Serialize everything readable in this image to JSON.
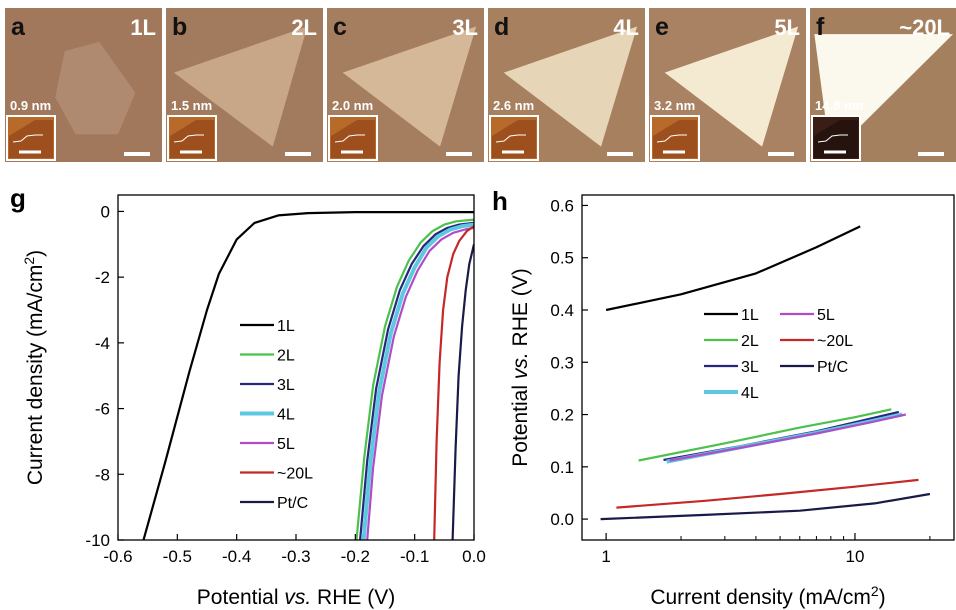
{
  "images": {
    "panels": [
      {
        "letter": "a",
        "layer": "1L",
        "thickness": "0.9 nm",
        "bg": "#a1785c",
        "flake": "#b08a70",
        "shape": "hex"
      },
      {
        "letter": "b",
        "layer": "2L",
        "thickness": "1.5 nm",
        "bg": "#a27a5d",
        "flake": "#c7a787",
        "shape": "tri"
      },
      {
        "letter": "c",
        "layer": "3L",
        "thickness": "2.0 nm",
        "bg": "#a57d5f",
        "flake": "#d4b898",
        "shape": "tri"
      },
      {
        "letter": "d",
        "layer": "4L",
        "thickness": "2.6 nm",
        "bg": "#a7805f",
        "flake": "#e6d6b7",
        "shape": "tri"
      },
      {
        "letter": "e",
        "layer": "5L",
        "thickness": "3.2 nm",
        "bg": "#a88262",
        "flake": "#f4ead2",
        "shape": "tri"
      },
      {
        "letter": "f",
        "layer": "~20L",
        "thickness": "14.8 nm",
        "bg": "#a5805f",
        "flake": "#fbf8ee",
        "shape": "tri"
      }
    ]
  },
  "chart_data": [
    {
      "panel": "g",
      "type": "line",
      "xlabel_parts": [
        "Potential ",
        "vs.",
        " RHE (V)"
      ],
      "ylabel_parts": [
        "Current density (mA/cm",
        "2",
        ")"
      ],
      "xlim": [
        -0.6,
        0.0
      ],
      "ylim": [
        -10,
        0.5
      ],
      "xticks": [
        "-0.6",
        "-0.5",
        "-0.4",
        "-0.3",
        "-0.2",
        "-0.1",
        "0.0"
      ],
      "yticks": [
        "0",
        "-2",
        "-4",
        "-6",
        "-8",
        "-10"
      ],
      "legend_position": "center-left",
      "series": [
        {
          "name": "1L",
          "color": "#000000",
          "points": [
            [
              -0.557,
              -10
            ],
            [
              -0.52,
              -7.6
            ],
            [
              -0.48,
              -4.9
            ],
            [
              -0.45,
              -3.0
            ],
            [
              -0.43,
              -1.9
            ],
            [
              -0.4,
              -0.85
            ],
            [
              -0.37,
              -0.35
            ],
            [
              -0.33,
              -0.12
            ],
            [
              -0.28,
              -0.05
            ],
            [
              -0.2,
              -0.02
            ],
            [
              -0.1,
              -0.02
            ],
            [
              0,
              -0.02
            ]
          ]
        },
        {
          "name": "2L",
          "color": "#4cc24c",
          "points": [
            [
              -0.198,
              -10
            ],
            [
              -0.185,
              -7.5
            ],
            [
              -0.17,
              -5.3
            ],
            [
              -0.15,
              -3.5
            ],
            [
              -0.13,
              -2.3
            ],
            [
              -0.11,
              -1.5
            ],
            [
              -0.09,
              -0.95
            ],
            [
              -0.07,
              -0.6
            ],
            [
              -0.05,
              -0.4
            ],
            [
              -0.03,
              -0.3
            ],
            [
              0,
              -0.25
            ]
          ]
        },
        {
          "name": "3L",
          "color": "#26267a",
          "points": [
            [
              -0.192,
              -10
            ],
            [
              -0.18,
              -7.6
            ],
            [
              -0.165,
              -5.4
            ],
            [
              -0.145,
              -3.6
            ],
            [
              -0.125,
              -2.4
            ],
            [
              -0.105,
              -1.6
            ],
            [
              -0.085,
              -1.05
            ],
            [
              -0.065,
              -0.7
            ],
            [
              -0.045,
              -0.5
            ],
            [
              -0.025,
              -0.4
            ],
            [
              0,
              -0.35
            ]
          ]
        },
        {
          "name": "4L",
          "color": "#5ec8e0",
          "points": [
            [
              -0.186,
              -10
            ],
            [
              -0.175,
              -7.7
            ],
            [
              -0.16,
              -5.5
            ],
            [
              -0.14,
              -3.7
            ],
            [
              -0.12,
              -2.5
            ],
            [
              -0.1,
              -1.7
            ],
            [
              -0.08,
              -1.1
            ],
            [
              -0.06,
              -0.75
            ],
            [
              -0.04,
              -0.55
            ],
            [
              -0.02,
              -0.45
            ],
            [
              0,
              -0.4
            ]
          ]
        },
        {
          "name": "5L",
          "color": "#b04cc8",
          "points": [
            [
              -0.18,
              -10
            ],
            [
              -0.17,
              -7.8
            ],
            [
              -0.155,
              -5.6
            ],
            [
              -0.135,
              -3.8
            ],
            [
              -0.115,
              -2.6
            ],
            [
              -0.095,
              -1.8
            ],
            [
              -0.075,
              -1.2
            ],
            [
              -0.055,
              -0.85
            ],
            [
              -0.035,
              -0.65
            ],
            [
              -0.015,
              -0.55
            ],
            [
              0,
              -0.5
            ]
          ]
        },
        {
          "name": "~20L",
          "color": "#c42828",
          "points": [
            [
              -0.067,
              -10
            ],
            [
              -0.063,
              -7.0
            ],
            [
              -0.058,
              -4.6
            ],
            [
              -0.052,
              -3.0
            ],
            [
              -0.045,
              -2.0
            ],
            [
              -0.035,
              -1.3
            ],
            [
              -0.025,
              -0.9
            ],
            [
              -0.012,
              -0.6
            ],
            [
              0,
              -0.45
            ]
          ]
        },
        {
          "name": "Pt/C",
          "color": "#1a1a4a",
          "points": [
            [
              -0.036,
              -10
            ],
            [
              -0.031,
              -7.2
            ],
            [
              -0.026,
              -5.0
            ],
            [
              -0.02,
              -3.5
            ],
            [
              -0.014,
              -2.4
            ],
            [
              -0.008,
              -1.6
            ],
            [
              0,
              -1.0
            ]
          ]
        }
      ]
    },
    {
      "panel": "h",
      "type": "line",
      "xscale": "log",
      "xlabel_parts": [
        "Current density (mA/cm",
        "2",
        ")"
      ],
      "ylabel_parts": [
        "Potential ",
        "vs.",
        " RHE (V)"
      ],
      "xlim": [
        0.8,
        25
      ],
      "ylim": [
        -0.04,
        0.62
      ],
      "xticks": [
        {
          "value": 1,
          "label": "1"
        },
        {
          "value": 10,
          "label": "10"
        }
      ],
      "yticks": [
        "0.0",
        "0.1",
        "0.2",
        "0.3",
        "0.4",
        "0.5",
        "0.6"
      ],
      "legend_position": "center",
      "series": [
        {
          "name": "1L",
          "color": "#000000",
          "points": [
            [
              1,
              0.4
            ],
            [
              2,
              0.43
            ],
            [
              4,
              0.47
            ],
            [
              7,
              0.52
            ],
            [
              10.5,
              0.56
            ]
          ]
        },
        {
          "name": "2L",
          "color": "#4cc24c",
          "points": [
            [
              1.35,
              0.112
            ],
            [
              3,
              0.145
            ],
            [
              6,
              0.175
            ],
            [
              10,
              0.195
            ],
            [
              14,
              0.21
            ]
          ]
        },
        {
          "name": "3L",
          "color": "#26267a",
          "points": [
            [
              1.7,
              0.113
            ],
            [
              3.5,
              0.14
            ],
            [
              7,
              0.168
            ],
            [
              11,
              0.19
            ],
            [
              15,
              0.205
            ]
          ]
        },
        {
          "name": "4L",
          "color": "#5ec8e0",
          "points": [
            [
              1.75,
              0.11
            ],
            [
              3.5,
              0.138
            ],
            [
              7,
              0.165
            ],
            [
              11,
              0.185
            ],
            [
              15.5,
              0.2
            ]
          ]
        },
        {
          "name": "5L",
          "color": "#b04cc8",
          "points": [
            [
              1.8,
              0.112
            ],
            [
              3.6,
              0.138
            ],
            [
              7.2,
              0.165
            ],
            [
              11.5,
              0.185
            ],
            [
              16,
              0.2
            ]
          ]
        },
        {
          "name": "~20L",
          "color": "#c42828",
          "points": [
            [
              1.1,
              0.022
            ],
            [
              2.5,
              0.035
            ],
            [
              5,
              0.048
            ],
            [
              10,
              0.062
            ],
            [
              18,
              0.075
            ]
          ]
        },
        {
          "name": "Pt/C",
          "color": "#1a1a4a",
          "points": [
            [
              0.95,
              0.0
            ],
            [
              2.5,
              0.008
            ],
            [
              6,
              0.016
            ],
            [
              12,
              0.03
            ],
            [
              20,
              0.048
            ]
          ]
        }
      ]
    }
  ]
}
